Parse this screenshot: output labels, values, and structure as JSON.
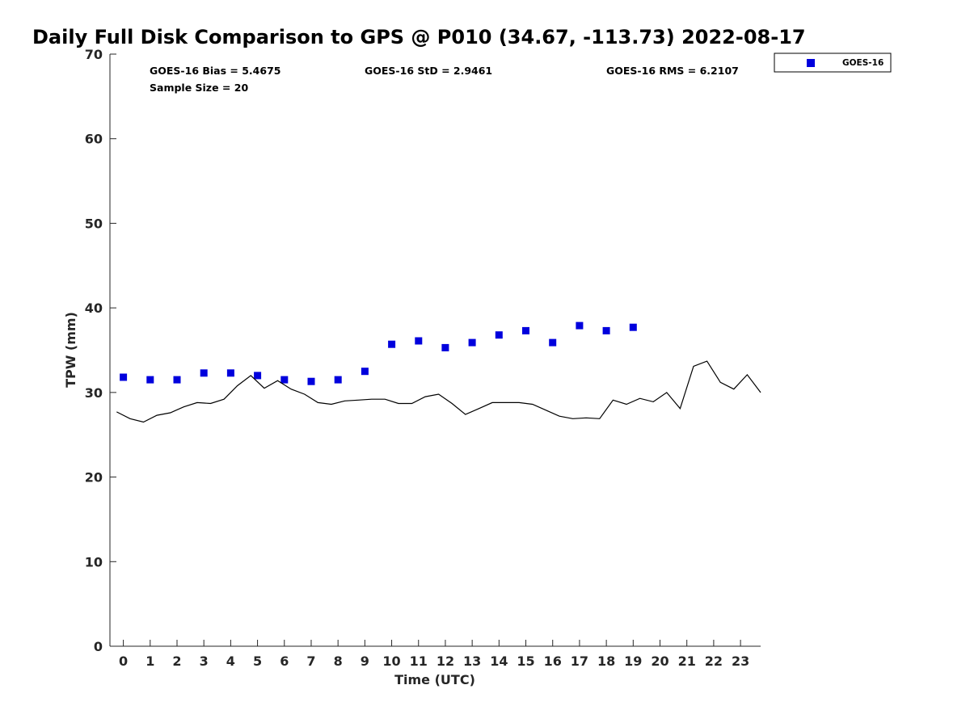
{
  "chart_data": {
    "type": "scatter",
    "title": "Daily Full Disk Comparison to GPS @ P010 (34.67, -113.73) 2022-08-17",
    "xlabel": "Time (UTC)",
    "ylabel": "TPW (mm)",
    "xlim": [
      -0.5,
      23.75
    ],
    "ylim": [
      0,
      70
    ],
    "x_ticks": [
      0,
      1,
      2,
      3,
      4,
      5,
      6,
      7,
      8,
      9,
      10,
      11,
      12,
      13,
      14,
      15,
      16,
      17,
      18,
      19,
      20,
      21,
      22,
      23
    ],
    "y_ticks": [
      0,
      10,
      20,
      30,
      40,
      50,
      60,
      70
    ],
    "grid": false,
    "legend_position": "top-right, outside plot",
    "stats": {
      "bias": "GOES-16 Bias = 5.4675",
      "std": "GOES-16 StD = 2.9461",
      "rms": "GOES-16 RMS = 6.2107",
      "sample_size": "Sample Size = 20"
    },
    "series": [
      {
        "name": "GOES-16",
        "type": "scatter",
        "marker": "square",
        "color": "#0000dd",
        "x": [
          0,
          1,
          2,
          3,
          4,
          5,
          6,
          7,
          8,
          9,
          10,
          11,
          12,
          13,
          14,
          15,
          16,
          17,
          18,
          19
        ],
        "y": [
          31.8,
          31.5,
          31.5,
          32.3,
          32.3,
          32.0,
          31.5,
          31.3,
          31.5,
          32.5,
          35.7,
          36.1,
          35.3,
          35.9,
          36.8,
          37.3,
          35.9,
          37.9,
          37.3,
          37.7
        ]
      },
      {
        "type": "line",
        "color": "#000000",
        "x": [
          -0.25,
          0.25,
          0.75,
          1.25,
          1.75,
          2.25,
          2.75,
          3.25,
          3.75,
          4.25,
          4.75,
          5.25,
          5.75,
          6.25,
          6.75,
          7.25,
          7.75,
          8.25,
          8.75,
          9.25,
          9.75,
          10.25,
          10.75,
          11.25,
          11.75,
          12.25,
          12.75,
          13.25,
          13.75,
          14.25,
          14.75,
          15.25,
          15.75,
          16.25,
          16.75,
          17.25,
          17.75,
          18.25,
          18.75,
          19.25,
          19.75,
          20.25,
          20.75,
          21.25,
          21.75,
          22.25,
          22.75,
          23.25,
          23.75
        ],
        "y": [
          27.7,
          26.9,
          26.5,
          27.3,
          27.6,
          28.3,
          28.8,
          28.7,
          29.2,
          30.8,
          32.0,
          30.5,
          31.4,
          30.4,
          29.8,
          28.8,
          28.6,
          29.0,
          29.1,
          29.2,
          29.2,
          28.7,
          28.7,
          29.5,
          29.8,
          28.7,
          27.4,
          28.1,
          28.8,
          28.8,
          28.8,
          28.6,
          27.9,
          27.2,
          26.9,
          27.0,
          26.9,
          29.1,
          28.6,
          29.3,
          28.9,
          30.0,
          28.1,
          33.1,
          33.7,
          31.2,
          30.4,
          32.1,
          30.0
        ]
      }
    ]
  }
}
